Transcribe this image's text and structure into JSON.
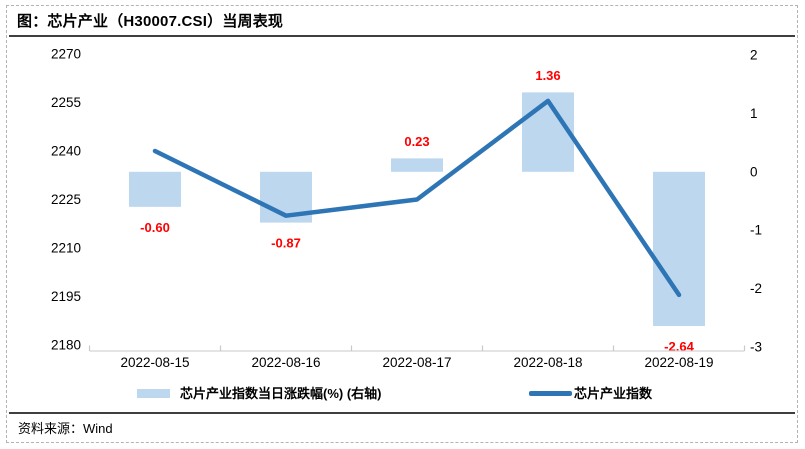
{
  "title": "图：芯片产业（H30007.CSI）当周表现",
  "source": "资料来源：Wind",
  "legend": {
    "bar_label": "芯片产业指数当日涨跌幅(%) (右轴)",
    "line_label": "芯片产业指数"
  },
  "colors": {
    "bar_fill": "#BDD7EE",
    "line": "#2E75B6",
    "data_label": "#FF0000",
    "axis_line": "#D4D4D4",
    "axis_tick": "#C9C9C9",
    "text": "#000000"
  },
  "chart_data": {
    "type": "combo",
    "categories": [
      "2022-08-15",
      "2022-08-16",
      "2022-08-17",
      "2022-08-18",
      "2022-08-19"
    ],
    "series": [
      {
        "name": "芯片产业指数当日涨跌幅(%)",
        "type": "bar",
        "axis": "right",
        "values": [
          -0.6,
          -0.87,
          0.23,
          1.36,
          -2.64
        ],
        "labels": [
          "-0.60",
          "-0.87",
          "0.23",
          "1.36",
          "-2.64"
        ],
        "color": "#BDD7EE"
      },
      {
        "name": "芯片产业指数",
        "type": "line",
        "axis": "left",
        "values": [
          2240,
          2220,
          2225,
          2255.5,
          2195.5
        ],
        "color": "#2E75B6"
      }
    ],
    "left_axis": {
      "ticks": [
        2270,
        2255,
        2240,
        2225,
        2210,
        2195,
        2180
      ],
      "min": 2180,
      "max": 2270
    },
    "right_axis": {
      "ticks": [
        2,
        1,
        0,
        -1,
        -2,
        -3
      ],
      "min": -3,
      "max": 2
    },
    "grid": false,
    "legend_position": "bottom"
  }
}
